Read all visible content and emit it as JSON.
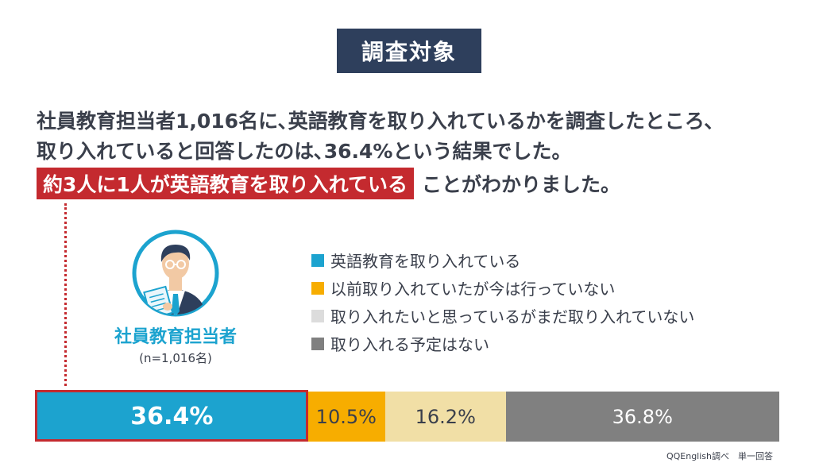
{
  "title": "調査対象",
  "text": {
    "line1": "社員教育担当者1,016名に､英語教育を取り入れているかを調査したところ､",
    "line2": "取り入れていると回答したのは､36.4%という結果でした。",
    "highlight": "約3人に1人が英語教育を取り入れている",
    "line3_rest": "ことがわかりました。"
  },
  "respondent": {
    "label": "社員教育担当者",
    "n": "(n=1,016名)"
  },
  "source": "QQEnglish調べ　単一回答",
  "colors": {
    "navy": "#2e3f5c",
    "accent_red": "#c42a2f",
    "blue": "#1ca3cf"
  },
  "chart_data": {
    "type": "bar",
    "orientation": "horizontal-stacked",
    "unit": "%",
    "series": [
      {
        "name": "英語教育を取り入れている",
        "value": 36.4,
        "label": "36.4%",
        "color": "#1ca3cf"
      },
      {
        "name": "以前取り入れていたが今は行っていない",
        "value": 10.5,
        "label": "10.5%",
        "color": "#f7ad00"
      },
      {
        "name": "取り入れたいと思っているがまだ取り入れていない",
        "value": 16.2,
        "label": "16.2%",
        "color": "#f1dfa6"
      },
      {
        "name": "取り入れる予定はない",
        "value": 36.8,
        "label": "36.8%",
        "color": "#808080"
      }
    ],
    "legend_colors": [
      "#1ca3cf",
      "#f7ad00",
      "#dcdcdc",
      "#808080"
    ],
    "legend_position": "top-right"
  }
}
